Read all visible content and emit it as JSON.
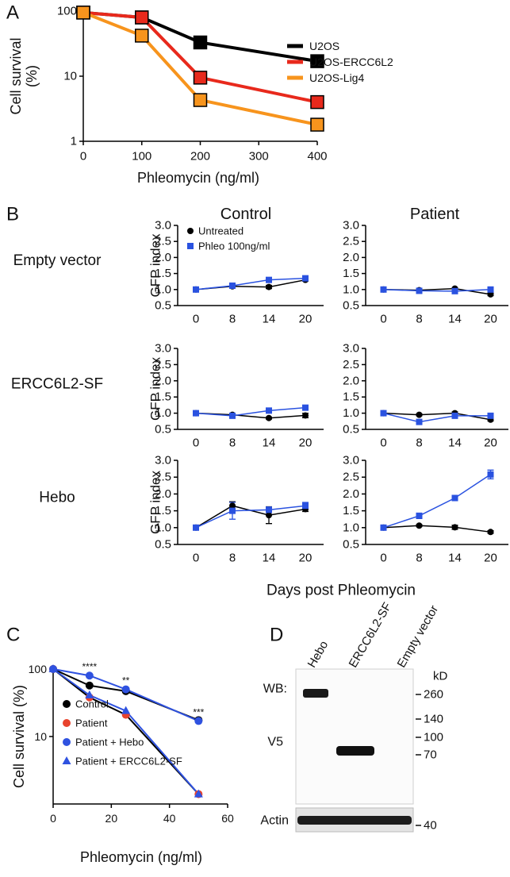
{
  "chart_data": [
    {
      "type": "line",
      "label": "A",
      "xlabel": "Phleomycin (ng/ml)",
      "ylabel": [
        "Cell survival",
        "(%)"
      ],
      "x": [
        0,
        100,
        200,
        400
      ],
      "xlim": [
        0,
        400
      ],
      "xticks": [
        0,
        100,
        200,
        300,
        400
      ],
      "ylim": [
        1,
        100
      ],
      "yticks": [
        1,
        10,
        100
      ],
      "log_y": true,
      "legend": "right",
      "series": [
        {
          "name": "U2OS",
          "color": "#000000",
          "marker": "square",
          "values": [
            95,
            80,
            33,
            17
          ]
        },
        {
          "name": "U2OS-ERCC6L2",
          "color": "#e8291c",
          "marker": "square",
          "values": [
            95,
            80,
            9.5,
            4
          ]
        },
        {
          "name": "U2OS-Lig4",
          "color": "#f7941d",
          "marker": "square",
          "values": [
            95,
            42,
            4.3,
            1.8
          ]
        }
      ]
    },
    {
      "type": "line",
      "label": "B",
      "title": "Control",
      "row_label": "Empty vector",
      "ylabel": "GFP index",
      "legend": "upper left",
      "categories": [
        "0",
        "8",
        "14",
        "20"
      ],
      "ylim": [
        0.5,
        3
      ],
      "yticks": [
        {
          "value": 0.5,
          "label": "0.5"
        },
        {
          "value": 1,
          "label": "1.0"
        },
        {
          "value": 1.5,
          "label": "1.5"
        },
        {
          "value": 2,
          "label": "2.0"
        },
        {
          "value": 2.5,
          "label": "2.5"
        },
        {
          "value": 3,
          "label": "3.0"
        }
      ],
      "series": [
        {
          "name": "Untreated",
          "color": "#000000",
          "marker": "circle",
          "values": [
            1.0,
            1.1,
            1.08,
            1.3
          ],
          "errors": [
            0.02,
            0.05,
            0.05,
            0.04
          ]
        },
        {
          "name": "Phleo 100ng/ml",
          "color": "#2a52e0",
          "marker": "square",
          "values": [
            1.0,
            1.12,
            1.3,
            1.35
          ],
          "errors": [
            0.02,
            0.05,
            0.03,
            0.04
          ]
        }
      ]
    },
    {
      "type": "line",
      "title": "Patient",
      "categories": [
        "0",
        "8",
        "14",
        "20"
      ],
      "ylim": [
        0.5,
        3
      ],
      "yticks": [
        {
          "value": 0.5,
          "label": "0.5"
        },
        {
          "value": 1,
          "label": "1.0"
        },
        {
          "value": 1.5,
          "label": "1.5"
        },
        {
          "value": 2,
          "label": "2.0"
        },
        {
          "value": 2.5,
          "label": "2.5"
        },
        {
          "value": 3,
          "label": "3.0"
        }
      ],
      "series": [
        {
          "color": "#000000",
          "marker": "circle",
          "values": [
            1.0,
            0.98,
            1.03,
            0.85
          ],
          "errors": [
            0.02,
            0.03,
            0.03,
            0.04
          ]
        },
        {
          "color": "#2a52e0",
          "marker": "square",
          "values": [
            1.0,
            0.96,
            0.95,
            1.0
          ],
          "errors": [
            0.02,
            0.03,
            0.04,
            0.03
          ]
        }
      ]
    },
    {
      "type": "line",
      "row_label": "ERCC6L2-SF",
      "ylabel": "GFP index",
      "categories": [
        "0",
        "8",
        "14",
        "20"
      ],
      "ylim": [
        0.5,
        3
      ],
      "yticks": [
        {
          "value": 0.5,
          "label": "0.5"
        },
        {
          "value": 1,
          "label": "1.0"
        },
        {
          "value": 1.5,
          "label": "1.5"
        },
        {
          "value": 2,
          "label": "2.0"
        },
        {
          "value": 2.5,
          "label": "2.5"
        },
        {
          "value": 3,
          "label": "3.0"
        }
      ],
      "series": [
        {
          "color": "#000000",
          "marker": "circle",
          "values": [
            1.0,
            0.95,
            0.85,
            0.93
          ],
          "errors": [
            0.02,
            0.03,
            0.03,
            0.07
          ]
        },
        {
          "color": "#2a52e0",
          "marker": "square",
          "values": [
            1.0,
            0.92,
            1.08,
            1.17
          ],
          "errors": [
            0.02,
            0.03,
            0.04,
            0.05
          ]
        }
      ]
    },
    {
      "type": "line",
      "categories": [
        "0",
        "8",
        "14",
        "20"
      ],
      "ylim": [
        0.5,
        3
      ],
      "yticks": [
        {
          "value": 0.5,
          "label": "0.5"
        },
        {
          "value": 1,
          "label": "1.0"
        },
        {
          "value": 1.5,
          "label": "1.5"
        },
        {
          "value": 2,
          "label": "2.0"
        },
        {
          "value": 2.5,
          "label": "2.5"
        },
        {
          "value": 3,
          "label": "3.0"
        }
      ],
      "series": [
        {
          "color": "#000000",
          "marker": "circle",
          "values": [
            1.0,
            0.95,
            1.0,
            0.8
          ],
          "errors": [
            0.02,
            0.03,
            0.04,
            0.04
          ]
        },
        {
          "color": "#2a52e0",
          "marker": "square",
          "values": [
            1.0,
            0.73,
            0.92,
            0.92
          ],
          "errors": [
            0.02,
            0.03,
            0.04,
            0.04
          ]
        }
      ]
    },
    {
      "type": "line",
      "row_label": "Hebo",
      "ylabel": "GFP index",
      "categories": [
        "0",
        "8",
        "14",
        "20"
      ],
      "ylim": [
        0.5,
        3
      ],
      "yticks": [
        {
          "value": 0.5,
          "label": "0.5"
        },
        {
          "value": 1,
          "label": "1.0"
        },
        {
          "value": 1.5,
          "label": "1.5"
        },
        {
          "value": 2,
          "label": "2.0"
        },
        {
          "value": 2.5,
          "label": "2.5"
        },
        {
          "value": 3,
          "label": "3.0"
        }
      ],
      "series": [
        {
          "color": "#000000",
          "marker": "circle",
          "values": [
            1.0,
            1.65,
            1.37,
            1.55
          ],
          "errors": [
            0.02,
            0.12,
            0.25,
            0.07
          ]
        },
        {
          "color": "#2a52e0",
          "marker": "square",
          "values": [
            1.0,
            1.5,
            1.53,
            1.65
          ],
          "errors": [
            0.02,
            0.25,
            0.08,
            0.1
          ]
        }
      ]
    },
    {
      "type": "line",
      "categories": [
        "0",
        "8",
        "14",
        "20"
      ],
      "ylim": [
        0.5,
        3
      ],
      "yticks": [
        {
          "value": 0.5,
          "label": "0.5"
        },
        {
          "value": 1,
          "label": "1.0"
        },
        {
          "value": 1.5,
          "label": "1.5"
        },
        {
          "value": 2,
          "label": "2.0"
        },
        {
          "value": 2.5,
          "label": "2.5"
        },
        {
          "value": 3,
          "label": "3.0"
        }
      ],
      "series": [
        {
          "color": "#000000",
          "marker": "circle",
          "values": [
            1.0,
            1.06,
            1.01,
            0.87
          ],
          "errors": [
            0.02,
            0.03,
            0.06,
            0.04
          ]
        },
        {
          "color": "#2a52e0",
          "marker": "square",
          "values": [
            1.0,
            1.35,
            1.88,
            2.58
          ],
          "errors": [
            0.02,
            0.08,
            0.04,
            0.13
          ]
        }
      ]
    },
    {
      "type": "line",
      "label": "C",
      "xlabel": "Phleomycin (ng/ml)",
      "ylabel": "Cell survival (%)",
      "x": [
        0,
        12.5,
        25,
        50
      ],
      "xlim": [
        0,
        60
      ],
      "xticks": [
        0,
        20,
        40,
        60
      ],
      "ylim": [
        1,
        100
      ],
      "yticks": [
        10,
        100
      ],
      "log_y": true,
      "legend": "left",
      "series": [
        {
          "name": "Control",
          "color": "#000000",
          "marker": "circle",
          "values": [
            100,
            57,
            47,
            17.5
          ]
        },
        {
          "name": "Patient",
          "color": "#e8432d",
          "line_color": "#000000",
          "marker": "circle",
          "values": [
            100,
            38,
            21,
            1.4
          ]
        },
        {
          "name": "Patient + Hebo",
          "color": "#2f52e0",
          "marker": "circle",
          "values": [
            100,
            80,
            50,
            17
          ],
          "significance": [
            null,
            "****",
            "**",
            "***"
          ]
        },
        {
          "name": "Patient + ERCC6L2-SF",
          "color": "#2f52e0",
          "marker": "triangle",
          "values": [
            100,
            41,
            24,
            1.4
          ]
        }
      ]
    }
  ],
  "panel_b": {
    "xlabel": "Days post Phleomycin"
  },
  "blot": {
    "label": "D",
    "lanes": [
      "Hebo",
      "ERCC6L2-SF",
      "Empty vector"
    ],
    "probe_labels": [
      "WB:",
      "V5",
      "Actin"
    ],
    "unit": "kD",
    "markers": [
      260,
      140,
      100,
      70,
      40
    ]
  }
}
